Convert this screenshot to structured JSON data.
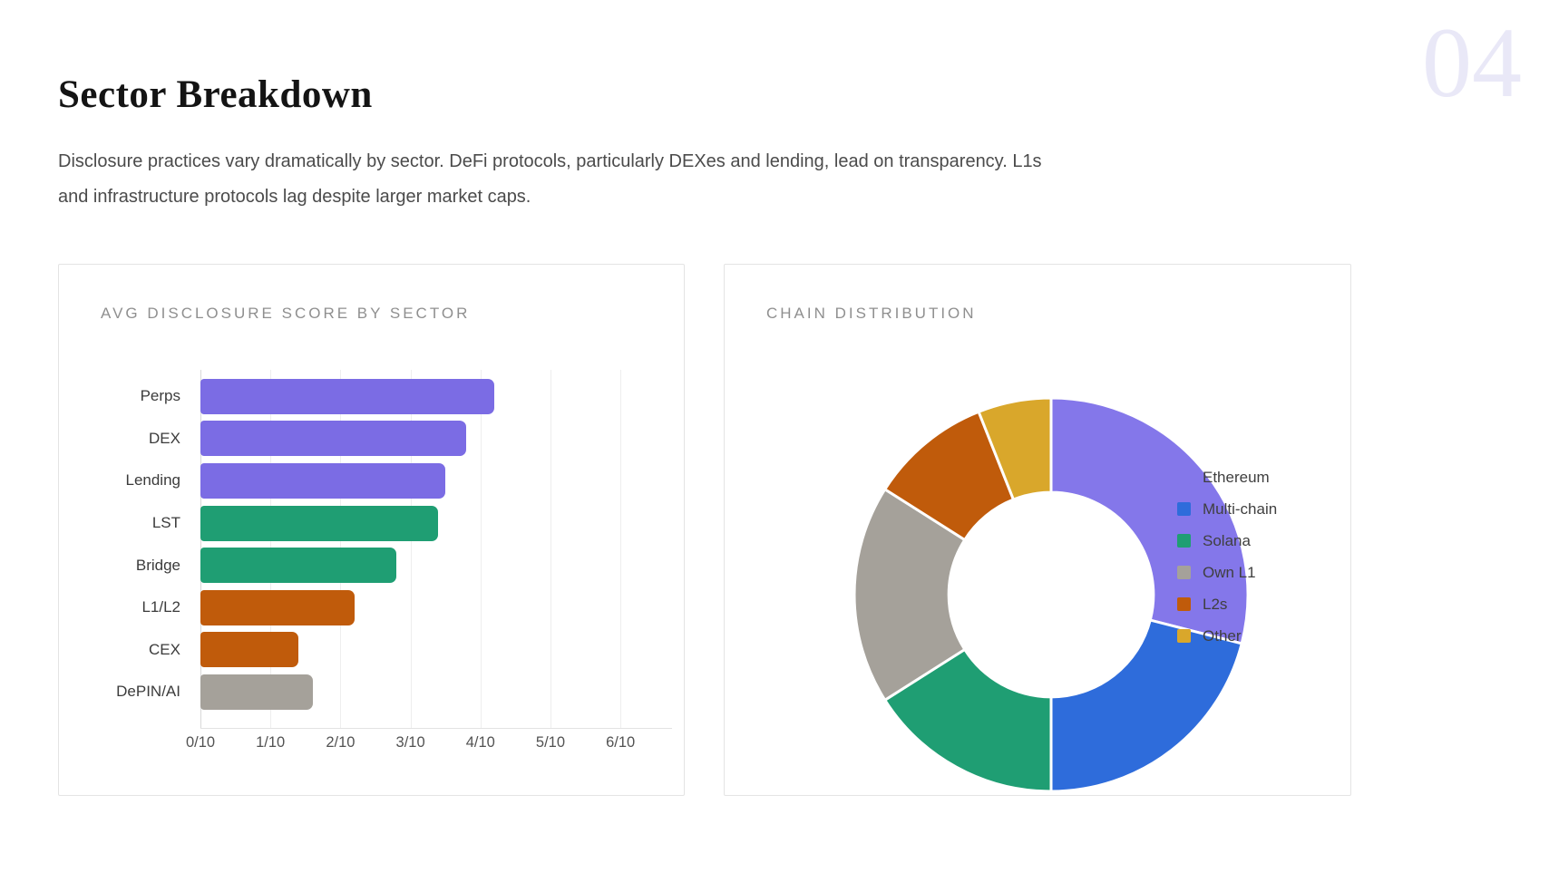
{
  "page": {
    "section_number": "04",
    "title": "Sector Breakdown",
    "description_lines": [
      "Disclosure practices vary dramatically by sector. DeFi protocols, particularly DEXes and lending, lead on transparency. L1s",
      "and infrastructure protocols lag despite larger market caps."
    ]
  },
  "colors": {
    "bar_purple": "#7b6ce4",
    "donut_purple": "#8477ea",
    "green": "#1f9e73",
    "orange": "#c05b0b",
    "gray": "#a5a19a",
    "blue": "#2e6cdb",
    "gold": "#d9a72b",
    "card_border": "#e4e4e4",
    "muted_title": "#8f8f8f",
    "section_number": "#e9e8f7"
  },
  "chart_data": [
    {
      "type": "bar",
      "orientation": "horizontal",
      "title": "AVG DISCLOSURE SCORE BY SECTOR",
      "categories": [
        "Perps",
        "DEX",
        "Lending",
        "LST",
        "Bridge",
        "L1/L2",
        "CEX",
        "DePIN/AI"
      ],
      "values": [
        4.2,
        3.8,
        3.5,
        3.4,
        2.8,
        2.2,
        1.4,
        1.6
      ],
      "bar_colors": [
        "#7b6ce4",
        "#7b6ce4",
        "#7b6ce4",
        "#1f9e73",
        "#1f9e73",
        "#c05b0b",
        "#c05b0b",
        "#a5a19a"
      ],
      "x_tick_labels": [
        "0/10",
        "1/10",
        "2/10",
        "3/10",
        "4/10",
        "5/10",
        "6/10"
      ],
      "x_tick_values": [
        0,
        1,
        2,
        3,
        4,
        5,
        6
      ],
      "xlim": [
        0,
        6.71
      ],
      "grid": true,
      "legend": false
    },
    {
      "type": "pie",
      "subtype": "donut",
      "title": "CHAIN DISTRIBUTION",
      "inner_radius_ratio": 0.52,
      "legend_position": "right",
      "segments": [
        {
          "label": "Ethereum",
          "value": 29,
          "color": "#8477ea"
        },
        {
          "label": "Multi-chain",
          "value": 21,
          "color": "#2e6cdb"
        },
        {
          "label": "Solana",
          "value": 16,
          "color": "#1f9e73"
        },
        {
          "label": "Own L1",
          "value": 18,
          "color": "#a5a19a"
        },
        {
          "label": "L2s",
          "value": 10,
          "color": "#c05b0b"
        },
        {
          "label": "Other",
          "value": 6,
          "color": "#d9a72b"
        }
      ]
    }
  ]
}
